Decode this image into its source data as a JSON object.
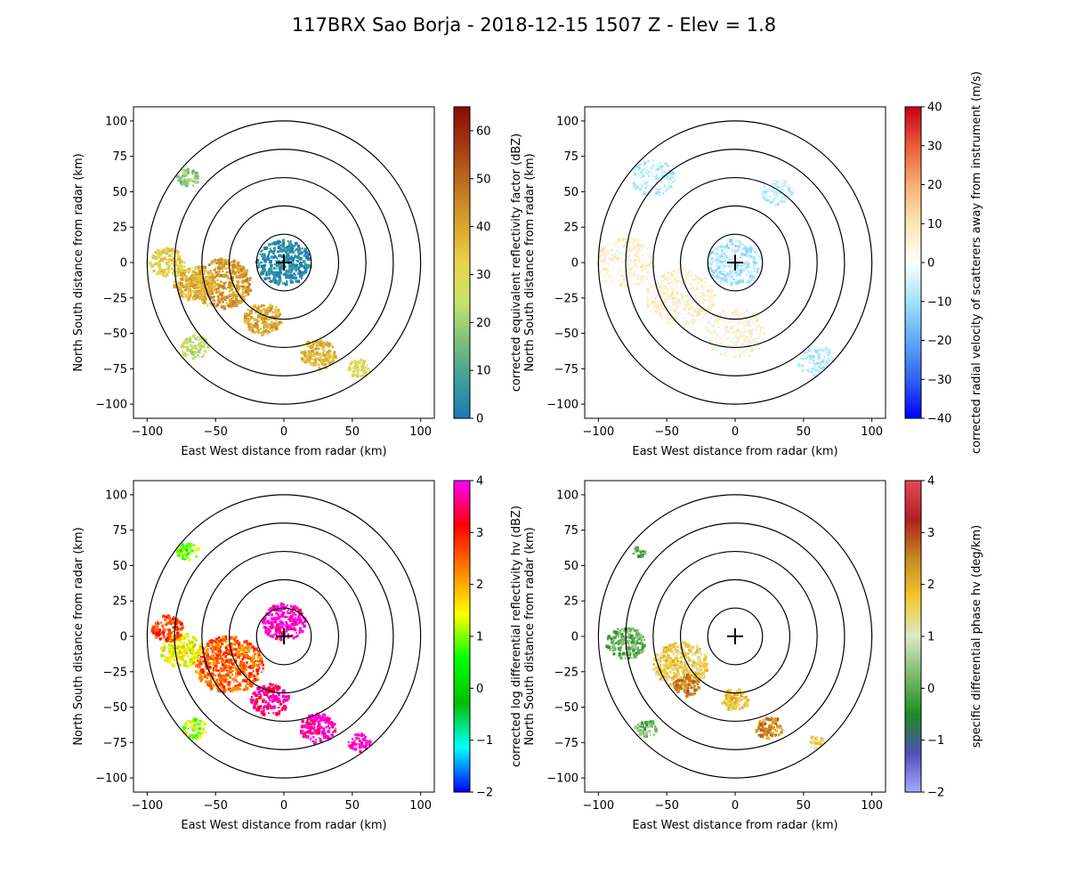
{
  "figure_title": "117BRX Sao Borja - 2018-12-15 1507 Z -  Elev = 1.8",
  "chart_data": [
    {
      "type": "heatmap",
      "field": "reflectivity",
      "title": "",
      "xlabel": "East West distance from radar (km)",
      "ylabel": "North South distance from radar (km)",
      "xlim": [
        -110,
        110
      ],
      "ylim": [
        -110,
        110
      ],
      "xticks": [
        -100,
        -50,
        0,
        50,
        100
      ],
      "yticks": [
        -100,
        -75,
        -50,
        -25,
        0,
        25,
        50,
        75,
        100
      ],
      "range_rings_km": [
        20,
        40,
        60,
        80,
        100
      ],
      "colorbar": {
        "label": "corrected equivalent reflectivity factor (dBZ)",
        "min": 0,
        "max": 65,
        "ticks": [
          0,
          10,
          20,
          30,
          40,
          50,
          60
        ],
        "colors": [
          "#1a7bb4",
          "#3f9f99",
          "#7fc07a",
          "#c8e36c",
          "#e8d34a",
          "#d9a22c",
          "#c0701e",
          "#a63a12",
          "#8b0a05"
        ]
      },
      "echo_regions": [
        {
          "x": 0,
          "y": 0,
          "r": 20,
          "value": 3
        },
        {
          "x": -45,
          "y": -15,
          "r": 22,
          "value": 42
        },
        {
          "x": -65,
          "y": -15,
          "r": 15,
          "value": 38
        },
        {
          "x": -85,
          "y": 0,
          "r": 13,
          "value": 33
        },
        {
          "x": -15,
          "y": -40,
          "r": 14,
          "value": 40
        },
        {
          "x": 25,
          "y": -65,
          "r": 13,
          "value": 38
        },
        {
          "x": -65,
          "y": -60,
          "r": 10,
          "value": 24
        },
        {
          "x": -70,
          "y": 60,
          "r": 8,
          "value": 18
        },
        {
          "x": 55,
          "y": -75,
          "r": 8,
          "value": 30
        }
      ]
    },
    {
      "type": "heatmap",
      "field": "velocity",
      "title": "",
      "xlabel": "East West distance from radar (km)",
      "ylabel": "North South distance from radar (km)",
      "xlim": [
        -110,
        110
      ],
      "ylim": [
        -110,
        110
      ],
      "xticks": [
        -100,
        -50,
        0,
        50,
        100
      ],
      "yticks": [
        -100,
        -75,
        -50,
        -25,
        0,
        25,
        50,
        75,
        100
      ],
      "range_rings_km": [
        20,
        40,
        60,
        80,
        100
      ],
      "colorbar": {
        "label": "corrected radial velocity of scatterers away from instrument (m/s)",
        "min": -40,
        "max": 40,
        "ticks": [
          -40,
          -30,
          -20,
          -10,
          0,
          10,
          20,
          30,
          40
        ],
        "colors": [
          "#0000ff",
          "#2f63f2",
          "#5fa9f5",
          "#9fe4f8",
          "#ffffff",
          "#fde7b2",
          "#f6b072",
          "#ea5a3a",
          "#c80018"
        ]
      },
      "echo_regions": [
        {
          "x": 0,
          "y": 0,
          "r": 20,
          "value": -7
        },
        {
          "x": -60,
          "y": 60,
          "r": 16,
          "value": -5
        },
        {
          "x": -80,
          "y": 0,
          "r": 22,
          "value": 4
        },
        {
          "x": -40,
          "y": -25,
          "r": 25,
          "value": 4
        },
        {
          "x": 0,
          "y": -50,
          "r": 22,
          "value": 3
        },
        {
          "x": 60,
          "y": -70,
          "r": 14,
          "value": -5
        },
        {
          "x": 30,
          "y": 50,
          "r": 12,
          "value": -5
        }
      ]
    },
    {
      "type": "heatmap",
      "field": "differential_reflectivity",
      "title": "",
      "xlabel": "East West distance from radar (km)",
      "ylabel": "North South distance from radar (km)",
      "xlim": [
        -110,
        110
      ],
      "ylim": [
        -110,
        110
      ],
      "xticks": [
        -100,
        -50,
        0,
        50,
        100
      ],
      "yticks": [
        -100,
        -75,
        -50,
        -25,
        0,
        25,
        50,
        75,
        100
      ],
      "range_rings_km": [
        20,
        40,
        60,
        80,
        100
      ],
      "colorbar": {
        "label": "corrected log differential reflectivity hv (dBZ)",
        "min": -2,
        "max": 4,
        "ticks": [
          -2,
          -1,
          0,
          1,
          2,
          3,
          4
        ],
        "colors": [
          "#0000ff",
          "#00ffff",
          "#00c000",
          "#00ff00",
          "#ffff00",
          "#ff8000",
          "#ff0000",
          "#ff00ff"
        ]
      },
      "echo_regions": [
        {
          "x": 0,
          "y": 10,
          "r": 16,
          "value": 3.9
        },
        {
          "x": -40,
          "y": -20,
          "r": 25,
          "value": 2.5
        },
        {
          "x": -75,
          "y": -10,
          "r": 15,
          "value": 1.5
        },
        {
          "x": -85,
          "y": 5,
          "r": 12,
          "value": 2.8
        },
        {
          "x": -10,
          "y": -45,
          "r": 14,
          "value": 3.6
        },
        {
          "x": 25,
          "y": -65,
          "r": 13,
          "value": 3.8
        },
        {
          "x": -65,
          "y": -65,
          "r": 9,
          "value": 1.2
        },
        {
          "x": -70,
          "y": 60,
          "r": 8,
          "value": 0.9
        },
        {
          "x": 55,
          "y": -75,
          "r": 8,
          "value": 3.9
        }
      ]
    },
    {
      "type": "heatmap",
      "field": "specific_differential_phase",
      "title": "",
      "xlabel": "East West distance from radar (km)",
      "ylabel": "North South distance from radar (km)",
      "xlim": [
        -110,
        110
      ],
      "ylim": [
        -110,
        110
      ],
      "xticks": [
        -100,
        -50,
        0,
        50,
        100
      ],
      "yticks": [
        -100,
        -75,
        -50,
        -25,
        0,
        25,
        50,
        75,
        100
      ],
      "range_rings_km": [
        20,
        40,
        60,
        80,
        100
      ],
      "colorbar": {
        "label": "specific differential phase hv (deg/km)",
        "min": -2,
        "max": 4,
        "ticks": [
          -2,
          -1,
          0,
          1,
          2,
          3,
          4
        ],
        "colors": [
          "#a8a8ff",
          "#5050b8",
          "#1e8c1e",
          "#7bbb6a",
          "#dde8c8",
          "#f3c82c",
          "#c88a20",
          "#b02020",
          "#e8485a"
        ]
      },
      "echo_regions": [
        {
          "x": -40,
          "y": -20,
          "r": 20,
          "value": 1.6
        },
        {
          "x": -80,
          "y": -5,
          "r": 14,
          "value": 0.1
        },
        {
          "x": -35,
          "y": -35,
          "r": 10,
          "value": 2.6
        },
        {
          "x": 0,
          "y": -45,
          "r": 10,
          "value": 1.8
        },
        {
          "x": 25,
          "y": -65,
          "r": 10,
          "value": 2.4
        },
        {
          "x": -65,
          "y": -65,
          "r": 8,
          "value": 0.2
        },
        {
          "x": -70,
          "y": 60,
          "r": 5,
          "value": 0.0
        },
        {
          "x": 60,
          "y": -75,
          "r": 6,
          "value": 1.5
        }
      ]
    }
  ]
}
